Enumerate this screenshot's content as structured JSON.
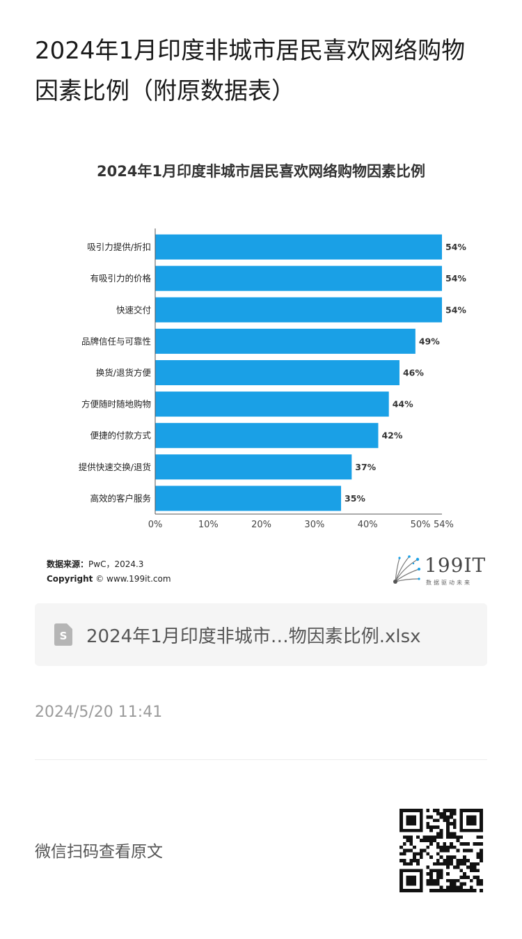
{
  "article": {
    "title": "2024年1月印度非城市居民喜欢网络购物因素比例（附原数据表）",
    "timestamp": "2024/5/20 11:41",
    "qr_hint": "微信扫码查看原文"
  },
  "attachment": {
    "file_name": "2024年1月印度非城市…物因素比例.xlsx",
    "icon": "spreadsheet-file-icon"
  },
  "figure": {
    "source_label": "数据来源：",
    "source_value": "PwC，2024.3",
    "copyright_label": "Copyright",
    "copyright_value": "© www.199it.com",
    "brand_name": "199IT",
    "brand_tagline": "数据驱动未来"
  },
  "colors": {
    "bar": "#1AA0E6",
    "axis": "#555555"
  },
  "chart_data": {
    "type": "bar",
    "orientation": "horizontal",
    "title": "2024年1月印度非城市居民喜欢网络购物因素比例",
    "categories": [
      "吸引力提供/折扣",
      "有吸引力的价格",
      "快速交付",
      "品牌信任与可靠性",
      "换货/退货方便",
      "方便随时随地购物",
      "便捷的付款方式",
      "提供快速交换/退货",
      "高效的客户服务"
    ],
    "values": [
      54,
      54,
      54,
      49,
      46,
      44,
      42,
      37,
      35
    ],
    "data_labels": [
      "54%",
      "54%",
      "54%",
      "49%",
      "46%",
      "44%",
      "42%",
      "37%",
      "35%"
    ],
    "xlim": [
      0,
      54
    ],
    "x_ticks": [
      0,
      10,
      20,
      30,
      40,
      50,
      54
    ],
    "x_tick_labels": [
      "0%",
      "10%",
      "20%",
      "30%",
      "40%",
      "50%",
      "54%"
    ],
    "grid": false,
    "legend": "none"
  }
}
